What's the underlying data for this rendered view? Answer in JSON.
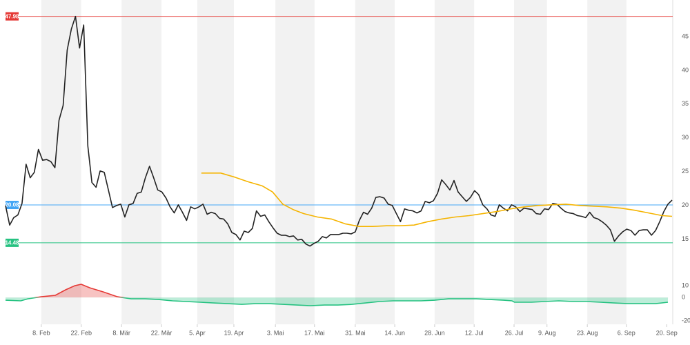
{
  "chart_data": {
    "type": "line",
    "xlim": [
      0,
      162
    ],
    "xticks": [
      {
        "value": 8.7,
        "label": "8. Feb"
      },
      {
        "value": 18.4,
        "label": "22. Feb"
      },
      {
        "value": 28.2,
        "label": "8. Mär"
      },
      {
        "value": 37.9,
        "label": "22. Mär"
      },
      {
        "value": 46.6,
        "label": "5. Apr"
      },
      {
        "value": 55.5,
        "label": "19. Apr"
      },
      {
        "value": 65.6,
        "label": "3. Mai"
      },
      {
        "value": 75.1,
        "label": "17. Mai"
      },
      {
        "value": 85.0,
        "label": "31. Mai"
      },
      {
        "value": 94.6,
        "label": "14. Jun"
      },
      {
        "value": 104.3,
        "label": "28. Jun"
      },
      {
        "value": 113.9,
        "label": "12. Jul"
      },
      {
        "value": 123.6,
        "label": "26. Jul"
      },
      {
        "value": 131.6,
        "label": "9. Aug"
      },
      {
        "value": 141.4,
        "label": "23. Aug"
      },
      {
        "value": 150.9,
        "label": "6. Sep"
      },
      {
        "value": 160.7,
        "label": "20. Sep"
      }
    ],
    "ylim": [
      11.1,
      50.4
    ],
    "yticks": [
      15,
      20,
      25,
      30,
      35,
      40,
      45
    ],
    "y2lim": [
      -22.9,
      27.1
    ],
    "y2ticks": [
      10,
      0,
      -20
    ],
    "levels": [
      {
        "value": 47.98,
        "color": "#e53935"
      },
      {
        "value": 20.08,
        "color": "#42a5f5"
      },
      {
        "value": 14.48,
        "color": "#26c281"
      }
    ],
    "series": [
      {
        "color": "#222222",
        "values": [
          20.0,
          17.1,
          18.2,
          18.6,
          20.3,
          26.1,
          24.1,
          24.9,
          28.3,
          26.7,
          26.8,
          26.5,
          25.6,
          32.6,
          34.8,
          43.0,
          46.1,
          47.98,
          43.3,
          46.7,
          28.8,
          23.4,
          22.7,
          25.1,
          24.9,
          22.3,
          19.7,
          20.0,
          20.2,
          18.3,
          20.1,
          20.3,
          21.8,
          22.0,
          24.1,
          25.8,
          24.1,
          22.3,
          22.0,
          21.1,
          19.8,
          18.9,
          20.1,
          19.0,
          17.8,
          19.8,
          19.5,
          19.8,
          20.2,
          18.7,
          19.0,
          18.8,
          18.1,
          18.0,
          17.3,
          16.0,
          15.7,
          14.9,
          16.2,
          16.0,
          16.6,
          19.2,
          18.4,
          18.6,
          17.6,
          16.7,
          15.9,
          15.6,
          15.6,
          15.4,
          15.5,
          14.9,
          15.0,
          14.3,
          14.0,
          14.4,
          14.7,
          15.4,
          15.2,
          15.7,
          15.7,
          15.7,
          15.9,
          15.9,
          15.8,
          16.1,
          17.8,
          19.0,
          18.7,
          19.6,
          21.2,
          21.3,
          21.1,
          20.2,
          20.0,
          18.8,
          17.6,
          19.5,
          19.3,
          19.2,
          18.9,
          19.2,
          20.6,
          20.4,
          20.7,
          21.8,
          23.8,
          23.1,
          22.3,
          23.7,
          22.0,
          21.3,
          20.6,
          21.2,
          22.2,
          21.6,
          20.1,
          19.5,
          18.6,
          18.4,
          20.1,
          19.6,
          19.2,
          20.1,
          19.8,
          19.1,
          19.6,
          19.5,
          19.4,
          18.8,
          18.7,
          19.5,
          19.4,
          20.3,
          20.2,
          19.6,
          19.1,
          18.9,
          18.8,
          18.5,
          18.4,
          18.2,
          19.0,
          18.2,
          18.0,
          17.6,
          17.1,
          16.4,
          14.7,
          15.5,
          16.1,
          16.5,
          16.3,
          15.6,
          16.3,
          16.4,
          16.4,
          15.6,
          16.3,
          17.6,
          19.1,
          20.2,
          20.8
        ]
      },
      {
        "color": "#f5b400",
        "x": [
          47.6,
          52.3,
          55.7,
          59.0,
          62.4,
          64.9,
          67.4,
          69.9,
          72.5,
          75.8,
          79.2,
          82.5,
          85.9,
          89.2,
          92.6,
          95.9,
          99.3,
          102.6,
          106.0,
          109.3,
          112.7,
          116.0,
          119.4,
          122.8,
          126.1,
          129.5,
          132.8,
          136.2,
          139.5,
          142.9,
          146.2,
          149.6,
          152.9,
          156.3,
          159.6,
          162
        ],
        "values": [
          24.8,
          24.8,
          24.2,
          23.5,
          22.9,
          22.0,
          20.2,
          19.4,
          18.8,
          18.3,
          18.0,
          17.3,
          16.9,
          16.9,
          17.0,
          17.0,
          17.1,
          17.6,
          18.0,
          18.3,
          18.5,
          18.8,
          19.1,
          19.5,
          19.8,
          20.0,
          20.1,
          20.2,
          20.0,
          19.9,
          19.8,
          19.6,
          19.3,
          18.9,
          18.5,
          18.4
        ]
      },
      {
        "axis": "y2",
        "color": "#e53935",
        "color_negative": "#26c281",
        "x": [
          0,
          3.7,
          5.4,
          8.7,
          12.1,
          14.6,
          16.8,
          18.4,
          20.5,
          23.8,
          27.2,
          30.5,
          33.9,
          37.2,
          40.6,
          43.9,
          47.3,
          50.6,
          54.0,
          57.4,
          60.7,
          64.1,
          67.4,
          70.8,
          74.1,
          77.5,
          80.8,
          84.2,
          87.5,
          90.9,
          94.2,
          97.6,
          101.0,
          104.3,
          107.7,
          111.0,
          114.4,
          117.7,
          121.1,
          123.1,
          123.7,
          127.8,
          131.1,
          134.5,
          137.9,
          141.2,
          144.6,
          147.9,
          151.3,
          154.6,
          158.0,
          161.0
        ],
        "values": [
          -2.4,
          -2.9,
          -1.2,
          0.6,
          1.8,
          6.5,
          10.0,
          11.2,
          8.2,
          4.7,
          0.6,
          -1.2,
          -1.2,
          -1.8,
          -2.9,
          -3.5,
          -4.1,
          -4.7,
          -5.3,
          -5.9,
          -5.3,
          -5.3,
          -5.9,
          -6.5,
          -7.1,
          -6.5,
          -6.5,
          -5.9,
          -4.7,
          -3.5,
          -2.9,
          -2.9,
          -2.9,
          -2.4,
          -1.2,
          -1.2,
          -1.2,
          -1.8,
          -2.4,
          -2.9,
          -4.1,
          -4.1,
          -3.5,
          -2.9,
          -3.5,
          -3.5,
          -4.1,
          -4.7,
          -5.3,
          -5.3,
          -5.3,
          -4.1
        ]
      }
    ]
  }
}
